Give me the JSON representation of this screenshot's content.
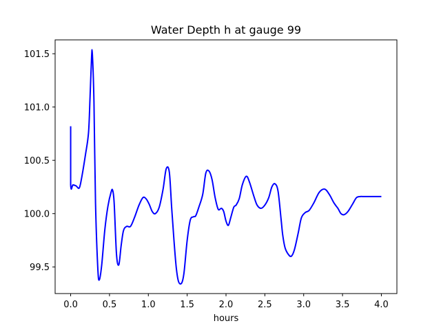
{
  "chart_data": {
    "type": "line",
    "title": "Water Depth h at gauge 99",
    "xlabel": "hours",
    "ylabel": "",
    "xlim": [
      -0.2,
      4.2
    ],
    "ylim": [
      99.25,
      101.63
    ],
    "xticks": [
      0.0,
      0.5,
      1.0,
      1.5,
      2.0,
      2.5,
      3.0,
      3.5,
      4.0
    ],
    "xtick_labels": [
      "0.0",
      "0.5",
      "1.0",
      "1.5",
      "2.0",
      "2.5",
      "3.0",
      "3.5",
      "4.0"
    ],
    "yticks": [
      99.5,
      100.0,
      100.5,
      101.0,
      101.5
    ],
    "ytick_labels": [
      "99.5",
      "100.0",
      "100.5",
      "101.0",
      "101.5"
    ],
    "grid": false,
    "legend": "none",
    "series": [
      {
        "color": "#0000ff",
        "x": [
          0.0,
          0.0,
          0.03,
          0.07,
          0.11,
          0.14,
          0.19,
          0.23,
          0.25,
          0.27,
          0.28,
          0.3,
          0.32,
          0.35,
          0.37,
          0.4,
          0.44,
          0.48,
          0.52,
          0.54,
          0.56,
          0.59,
          0.62,
          0.65,
          0.68,
          0.72,
          0.77,
          0.82,
          0.88,
          0.93,
          0.97,
          1.01,
          1.05,
          1.09,
          1.14,
          1.19,
          1.23,
          1.27,
          1.3,
          1.33,
          1.36,
          1.39,
          1.43,
          1.46,
          1.5,
          1.54,
          1.58,
          1.61,
          1.65,
          1.7,
          1.74,
          1.78,
          1.82,
          1.86,
          1.9,
          1.94,
          1.97,
          2.0,
          2.03,
          2.06,
          2.1,
          2.13,
          2.17,
          2.21,
          2.26,
          2.3,
          2.36,
          2.4,
          2.45,
          2.5,
          2.55,
          2.59,
          2.63,
          2.67,
          2.71,
          2.73,
          2.76,
          2.8,
          2.84,
          2.88,
          2.93,
          2.97,
          3.02,
          3.07,
          3.13,
          3.2,
          3.27,
          3.33,
          3.39,
          3.44,
          3.48,
          3.52,
          3.57,
          3.63,
          3.68,
          3.73,
          3.77,
          3.82,
          3.87,
          3.92,
          3.96,
          4.0
        ],
        "y": [
          100.82,
          100.27,
          100.27,
          100.26,
          100.24,
          100.33,
          100.55,
          100.76,
          101.1,
          101.48,
          101.49,
          101.05,
          100.1,
          99.48,
          99.38,
          99.52,
          99.85,
          100.07,
          100.2,
          100.22,
          100.1,
          99.62,
          99.52,
          99.7,
          99.84,
          99.88,
          99.88,
          99.96,
          100.08,
          100.15,
          100.14,
          100.09,
          100.02,
          100.0,
          100.06,
          100.23,
          100.42,
          100.39,
          100.06,
          99.75,
          99.49,
          99.36,
          99.35,
          99.45,
          99.75,
          99.94,
          99.97,
          99.98,
          100.06,
          100.18,
          100.38,
          100.4,
          100.32,
          100.15,
          100.04,
          100.05,
          100.02,
          99.93,
          99.89,
          99.96,
          100.06,
          100.08,
          100.14,
          100.27,
          100.35,
          100.3,
          100.16,
          100.08,
          100.05,
          100.08,
          100.15,
          100.25,
          100.28,
          100.21,
          99.94,
          99.8,
          99.68,
          99.62,
          99.6,
          99.66,
          99.82,
          99.96,
          100.01,
          100.03,
          100.1,
          100.2,
          100.23,
          100.18,
          100.1,
          100.05,
          100.0,
          99.99,
          100.02,
          100.09,
          100.15,
          100.16,
          100.16,
          100.16,
          100.16,
          100.16,
          100.16,
          100.16
        ]
      }
    ]
  }
}
